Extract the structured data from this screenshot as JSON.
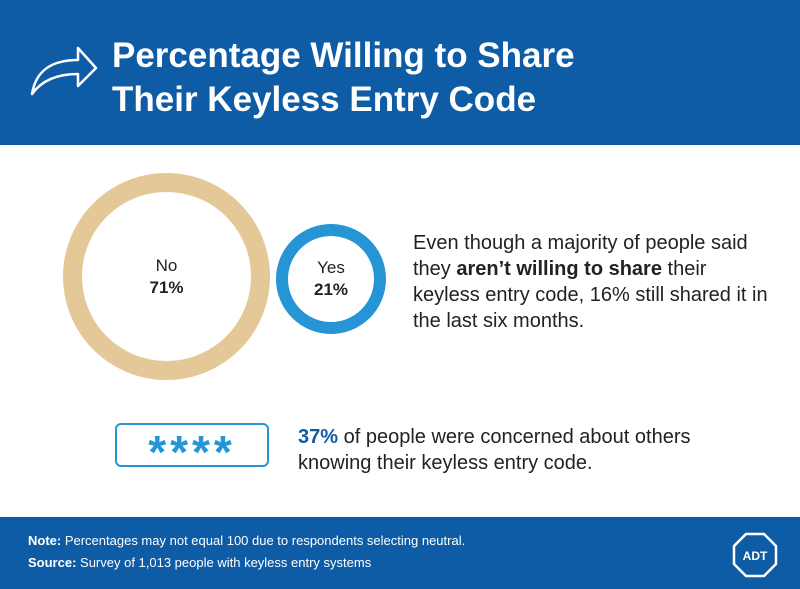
{
  "header": {
    "title_line1": "Percentage Willing to Share",
    "title_line2": "Their Keyless Entry Code"
  },
  "chart_data": {
    "type": "bubble",
    "categories": [
      "No",
      "Yes"
    ],
    "values": [
      71,
      21
    ],
    "value_labels": [
      "71%",
      "21%"
    ],
    "colors": [
      "#e5c898",
      "#2595d6"
    ]
  },
  "description": {
    "text_before": "Even though a majority of people said they ",
    "text_bold": "aren’t willing to share",
    "text_after": " their keyless entry code, 16% still shared it in the last six months."
  },
  "concern": {
    "code_mask": "****",
    "percent": "37%",
    "text": " of people were concerned about others knowing their keyless entry code."
  },
  "footer": {
    "note_key": "Note:",
    "note_text": " Percentages may not equal 100 due to respondents selecting neutral.",
    "source_key": "Source:",
    "source_text": " Survey of 1,013 people with keyless entry systems",
    "logo_text": "ADT"
  },
  "colors": {
    "brand_blue": "#0f5ca6",
    "accent_blue": "#2595d6",
    "tan": "#e5c898"
  }
}
